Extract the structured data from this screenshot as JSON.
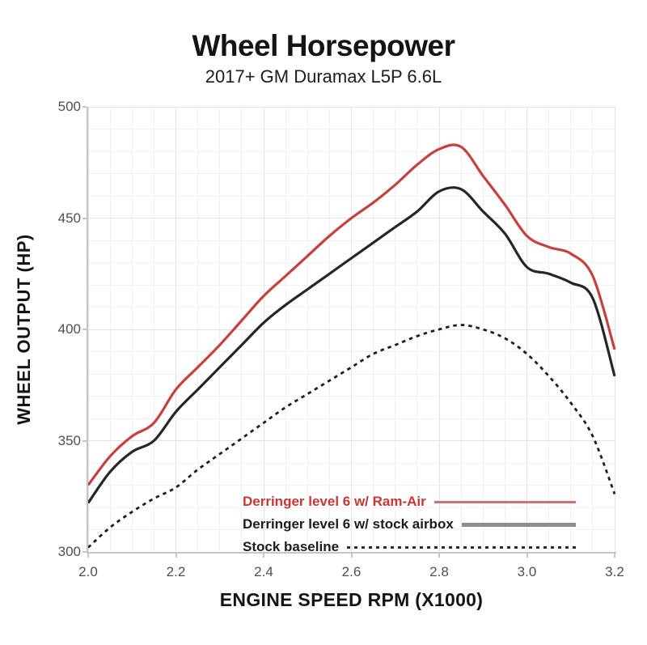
{
  "page": {
    "title": "Wheel Horsepower",
    "subtitle": "2017+ GM Duramax L5P 6.6L"
  },
  "chart_data": {
    "type": "line",
    "title": "Wheel Horsepower",
    "subtitle": "2017+ GM Duramax L5P 6.6L",
    "xlabel": "ENGINE SPEED RPM (X1000)",
    "ylabel": "WHEEL OUTPUT (HP)",
    "xlim": [
      2.0,
      3.2
    ],
    "ylim": [
      300,
      500
    ],
    "x_ticks": [
      2.0,
      2.2,
      2.4,
      2.6,
      2.8,
      3.0,
      3.2
    ],
    "x_tick_labels": [
      "2.0",
      "2.2",
      "2.4",
      "2.6",
      "2.8",
      "3.0",
      "3.2"
    ],
    "y_ticks": [
      300,
      350,
      400,
      450,
      500
    ],
    "y_tick_labels": [
      "300",
      "350",
      "400",
      "450",
      "500"
    ],
    "x_minor_step": 0.05,
    "y_minor_step": 10,
    "grid": "major+minor",
    "legend_position": "inside-bottom-right",
    "x": [
      2.0,
      2.05,
      2.1,
      2.15,
      2.2,
      2.25,
      2.3,
      2.35,
      2.4,
      2.45,
      2.5,
      2.55,
      2.6,
      2.65,
      2.7,
      2.75,
      2.8,
      2.85,
      2.9,
      2.95,
      3.0,
      3.05,
      3.1,
      3.15,
      3.2
    ],
    "series": [
      {
        "name": "Derringer level 6 w/ Ram-Air",
        "line_color": "#c8403c",
        "line_style": "solid",
        "line_width": 3.2,
        "legend_text_color": "#ce3531",
        "legend_swatch_color": "#d4716c",
        "legend_swatch_height": 3,
        "values": [
          330,
          343,
          352,
          358,
          373,
          383,
          393,
          404,
          415,
          424,
          433,
          442,
          450,
          457,
          465,
          474,
          481,
          482,
          469,
          456,
          442,
          437,
          434,
          424,
          391
        ]
      },
      {
        "name": "Derringer level 6 w/ stock airbox",
        "line_color": "#262626",
        "line_style": "solid",
        "line_width": 3.2,
        "legend_text_color": "#1c1c1c",
        "legend_swatch_color": "#8e8e8e",
        "legend_swatch_height": 5,
        "values": [
          322,
          336,
          345,
          350,
          363,
          373,
          383,
          393,
          403,
          411,
          418,
          425,
          432,
          439,
          446,
          453,
          462,
          463,
          453,
          443,
          428,
          425,
          421,
          414,
          379
        ]
      },
      {
        "name": "Stock baseline",
        "line_color": "#1e1e1e",
        "line_style": "dashed",
        "line_width": 2.8,
        "legend_text_color": "#1c1c1c",
        "legend_swatch_color": "#2b2b2b",
        "legend_swatch_height": 3,
        "values": [
          302,
          311,
          318,
          324,
          329,
          337,
          344,
          351,
          358,
          365,
          371,
          377,
          383,
          389,
          393,
          397,
          400,
          402,
          400,
          396,
          389,
          379,
          367,
          352,
          326
        ]
      }
    ]
  }
}
